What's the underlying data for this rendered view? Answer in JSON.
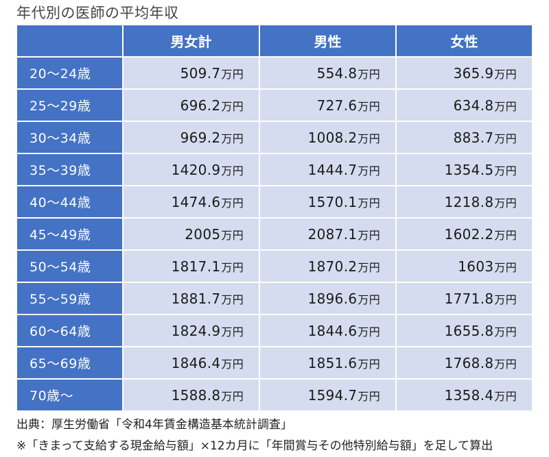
{
  "title": "年代別の医師の平均年収",
  "columns": [
    "男女計",
    "男性",
    "女性"
  ],
  "unit": "万円",
  "rows": [
    {
      "age": "20～24歳",
      "values": [
        "509.7",
        "554.8",
        "365.9"
      ]
    },
    {
      "age": "25～29歳",
      "values": [
        "696.2",
        "727.6",
        "634.8"
      ]
    },
    {
      "age": "30～34歳",
      "values": [
        "969.2",
        "1008.2",
        "883.7"
      ]
    },
    {
      "age": "35～39歳",
      "values": [
        "1420.9",
        "1444.7",
        "1354.5"
      ]
    },
    {
      "age": "40～44歳",
      "values": [
        "1474.6",
        "1570.1",
        "1218.8"
      ]
    },
    {
      "age": "45～49歳",
      "values": [
        "2005",
        "2087.1",
        "1602.2"
      ]
    },
    {
      "age": "50～54歳",
      "values": [
        "1817.1",
        "1870.2",
        "1603"
      ]
    },
    {
      "age": "55～59歳",
      "values": [
        "1881.7",
        "1896.6",
        "1771.8"
      ]
    },
    {
      "age": "60～64歳",
      "values": [
        "1824.9",
        "1844.6",
        "1655.8"
      ]
    },
    {
      "age": "65～69歳",
      "values": [
        "1846.4",
        "1851.6",
        "1768.8"
      ]
    },
    {
      "age": "70歳～",
      "values": [
        "1588.8",
        "1594.7",
        "1358.4"
      ]
    }
  ],
  "source": "出典：厚生労働省「令和4年賃金構造基本統計調査」",
  "note": "※「きまって支給する現金給与額」×12カ月に「年間賞与その他特別給与額」を足して算出",
  "colors": {
    "header_bg": "#4472c4",
    "cell_bg": "#d6dcef",
    "header_text": "#ffffff"
  }
}
